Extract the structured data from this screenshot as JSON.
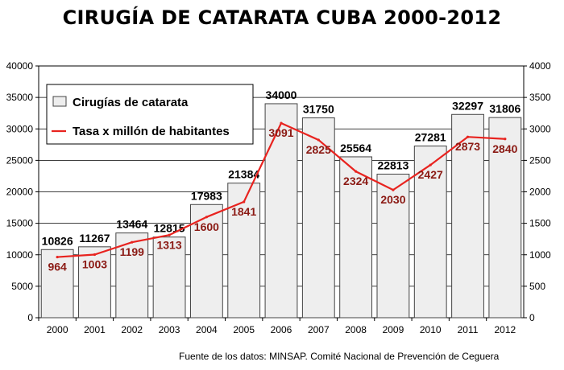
{
  "title": "CIRUGÍA DE CATARATA  CUBA 2000-2012",
  "source": "Fuente de los datos: MINSAP. Comité Nacional de Prevención de Ceguera",
  "colors": {
    "bar_fill": "#eeeeee",
    "bar_stroke": "#444444",
    "line": "#e8231f",
    "line_label": "#8b1a14",
    "plot_bg": "#ffffff",
    "grid": "#000000"
  },
  "chart_data": {
    "type": "bar+line",
    "title": "CIRUGÍA DE CATARATA  CUBA 2000-2012",
    "categories": [
      "2000",
      "2001",
      "2002",
      "2003",
      "2004",
      "2005",
      "2006",
      "2007",
      "2008",
      "2009",
      "2010",
      "2011",
      "2012"
    ],
    "series": [
      {
        "name": "Cirugías de catarata",
        "kind": "bar",
        "axis": "left",
        "values": [
          10826,
          11267,
          13464,
          12815,
          17983,
          21384,
          34000,
          31750,
          25564,
          22813,
          27281,
          32297,
          31806
        ]
      },
      {
        "name": "Tasa x millón de habitantes",
        "kind": "line",
        "axis": "right",
        "values": [
          964,
          1003,
          1199,
          1313,
          1600,
          1841,
          3091,
          2825,
          2324,
          2030,
          2427,
          2873,
          2840
        ]
      }
    ],
    "y_left": {
      "min": 0,
      "max": 40000,
      "ticks": [
        "0",
        "5000",
        "10000",
        "15000",
        "20000",
        "25000",
        "30000",
        "35000",
        "40000"
      ]
    },
    "y_right": {
      "min": 0,
      "max": 4000,
      "ticks": [
        "0",
        "500",
        "1000",
        "1500",
        "2000",
        "2500",
        "3000",
        "3500",
        "4000"
      ]
    },
    "legend": {
      "position": "top-left",
      "entries": [
        "Cirugías de catarata",
        "Tasa x millón de habitantes"
      ]
    }
  }
}
